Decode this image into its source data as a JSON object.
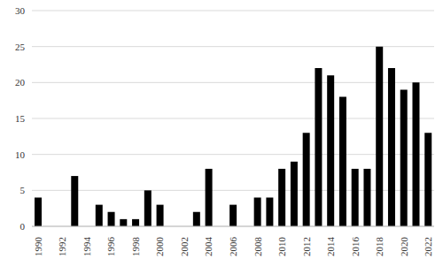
{
  "chart_data": {
    "type": "bar",
    "categories": [
      "1990",
      null,
      "1992",
      null,
      "1994",
      null,
      "1996",
      null,
      "1998",
      null,
      "2000",
      null,
      "2002",
      null,
      "2004",
      null,
      "2006",
      null,
      "2008",
      null,
      "2010",
      null,
      "2012",
      null,
      "2014",
      null,
      "2016",
      null,
      "2018",
      null,
      "2020",
      null,
      "2022"
    ],
    "values": [
      4,
      0,
      0,
      7,
      0,
      3,
      2,
      1,
      1,
      5,
      3,
      0,
      0,
      2,
      8,
      0,
      3,
      0,
      4,
      4,
      8,
      9,
      13,
      22,
      21,
      18,
      8,
      8,
      25,
      22,
      19,
      20,
      13
    ],
    "color": "#000000",
    "ylim": [
      0,
      30
    ],
    "yticks": [
      0,
      5,
      10,
      15,
      20,
      25,
      30
    ],
    "grid": true
  }
}
